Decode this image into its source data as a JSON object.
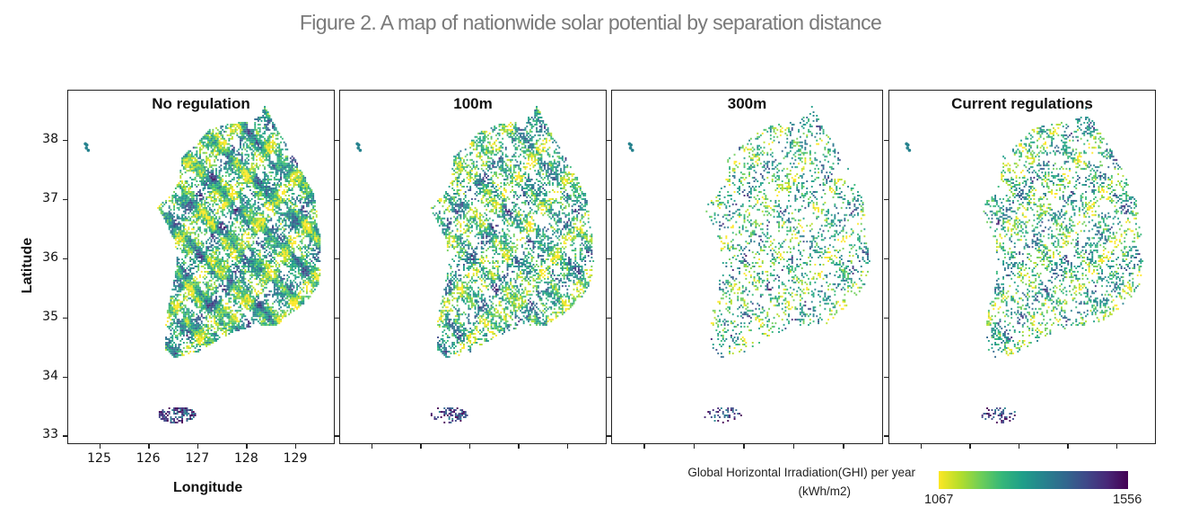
{
  "figure_title": "Figure 2. A map of nationwide solar potential by separation distance",
  "chart_data": {
    "type": "heatmap",
    "title": "Figure 2. A map of nationwide solar potential by separation distance",
    "xlabel": "Longitude",
    "ylabel": "Latitude",
    "xlim": [
      124.35,
      129.75
    ],
    "ylim": [
      32.9,
      38.85
    ],
    "xticks": [
      125,
      126,
      127,
      128,
      129
    ],
    "yticks": [
      33,
      34,
      35,
      36,
      37,
      38
    ],
    "panels": [
      {
        "title": "No regulation",
        "coverage": 0.9
      },
      {
        "title": "100m",
        "coverage": 0.62
      },
      {
        "title": "300m",
        "coverage": 0.3
      },
      {
        "title": "Current regulations",
        "coverage": 0.38
      }
    ],
    "colorbar": {
      "label_line1": "Global Horizontal Irradiation(GHI) per year",
      "label_line2": "(kWh/m2)",
      "min": 1067,
      "max": 1556,
      "colormap": "viridis"
    }
  },
  "colors": {
    "viridis": [
      "#fde725",
      "#b5de2b",
      "#6ece58",
      "#35b779",
      "#1f9e89",
      "#26828e",
      "#31688e",
      "#3e4989",
      "#482878",
      "#440154"
    ]
  }
}
